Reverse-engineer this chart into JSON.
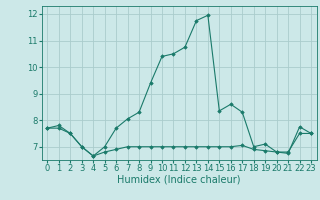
{
  "title": "",
  "xlabel": "Humidex (Indice chaleur)",
  "ylabel": "",
  "background_color": "#cce8e8",
  "grid_color": "#aacccc",
  "line_color": "#1a7a6a",
  "xlim": [
    -0.5,
    23.5
  ],
  "ylim": [
    6.5,
    12.3
  ],
  "yticks": [
    7,
    8,
    9,
    10,
    11,
    12
  ],
  "xticks": [
    0,
    1,
    2,
    3,
    4,
    5,
    6,
    7,
    8,
    9,
    10,
    11,
    12,
    13,
    14,
    15,
    16,
    17,
    18,
    19,
    20,
    21,
    22,
    23
  ],
  "line1_x": [
    0,
    1,
    2,
    3,
    4,
    5,
    6,
    7,
    8,
    9,
    10,
    11,
    12,
    13,
    14,
    15,
    16,
    17,
    18,
    19,
    20,
    21,
    22,
    23
  ],
  "line1_y": [
    7.7,
    7.8,
    7.5,
    7.0,
    6.65,
    7.0,
    7.7,
    8.05,
    8.3,
    9.4,
    10.4,
    10.5,
    10.75,
    11.75,
    11.95,
    8.35,
    8.6,
    8.3,
    7.0,
    7.1,
    6.8,
    6.75,
    7.75,
    7.5
  ],
  "line2_x": [
    0,
    1,
    2,
    3,
    4,
    5,
    6,
    7,
    8,
    9,
    10,
    11,
    12,
    13,
    14,
    15,
    16,
    17,
    18,
    19,
    20,
    21,
    22,
    23
  ],
  "line2_y": [
    7.7,
    7.7,
    7.5,
    7.0,
    6.65,
    6.8,
    6.9,
    7.0,
    7.0,
    7.0,
    7.0,
    7.0,
    7.0,
    7.0,
    7.0,
    7.0,
    7.0,
    7.05,
    6.9,
    6.85,
    6.8,
    6.8,
    7.5,
    7.5
  ],
  "tick_fontsize": 6,
  "xlabel_fontsize": 7
}
